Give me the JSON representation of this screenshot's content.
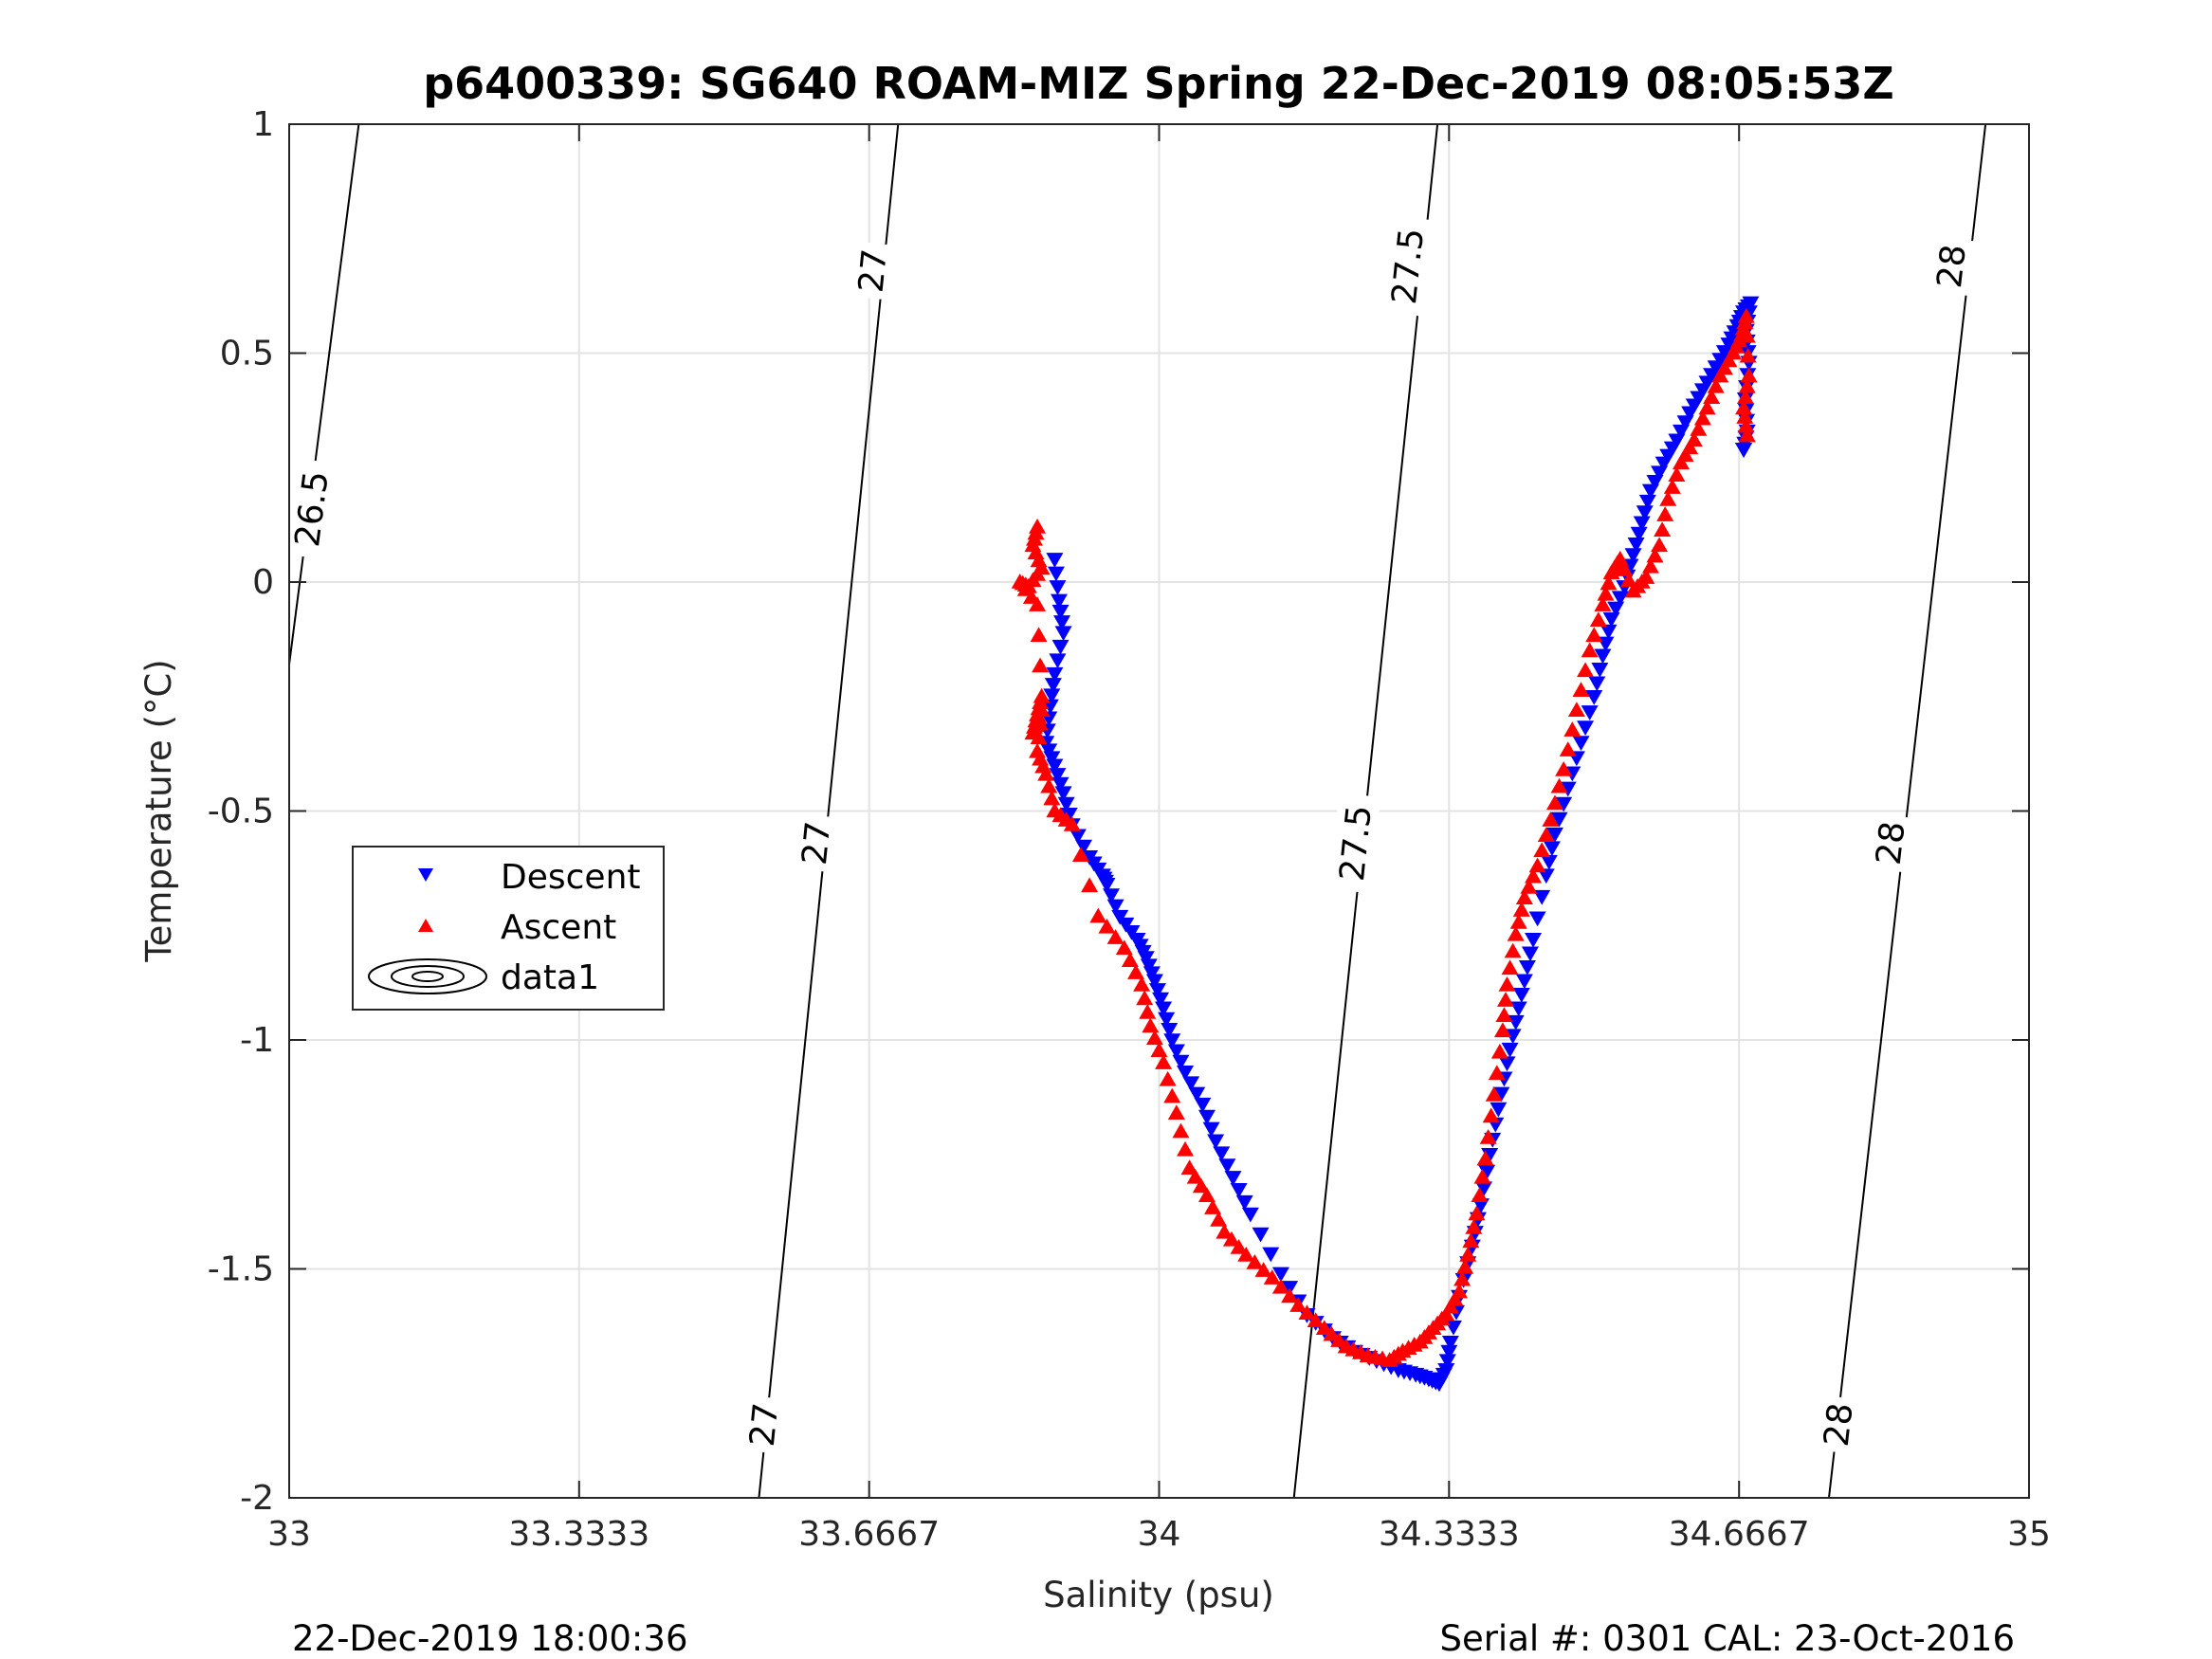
{
  "chart_data": {
    "type": "scatter",
    "title": "p6400339: SG640 ROAM-MIZ Spring 22-Dec-2019 08:05:53Z",
    "xlabel": "Salinity (psu)",
    "ylabel": "Temperature (°C)",
    "xlim": [
      33,
      35
    ],
    "ylim": [
      -2,
      1
    ],
    "grid": true,
    "x_ticks": [
      33,
      33.3333,
      33.6667,
      34,
      34.3333,
      34.6667,
      35
    ],
    "x_tick_labels": [
      "33",
      "33.3333",
      "33.6667",
      "34",
      "34.3333",
      "34.6667",
      "35"
    ],
    "y_ticks": [
      -2,
      -1.5,
      -1,
      -0.5,
      0,
      0.5,
      1
    ],
    "y_tick_labels": [
      "-2",
      "-1.5",
      "-1",
      "-0.5",
      "0",
      "0.5",
      "1"
    ],
    "legend": {
      "placement": "middle-left",
      "entries": [
        {
          "name": "Descent",
          "marker": "triangle-down",
          "color": "#0000ff"
        },
        {
          "name": "Ascent",
          "marker": "triangle-up",
          "color": "#ff0000"
        },
        {
          "name": "data1",
          "marker": "contour",
          "color": "#000000"
        }
      ]
    },
    "density_contours": [
      {
        "label": "26.5",
        "points": [
          [
            33.0,
            -0.18
          ],
          [
            33.08,
            1.0
          ]
        ],
        "label_at": [
          33.025,
          0.16
        ]
      },
      {
        "label": "27",
        "points": [
          [
            33.54,
            -2.0
          ],
          [
            33.7,
            1.0
          ]
        ],
        "label_at_list": [
          [
            33.545,
            -1.84
          ],
          [
            33.605,
            -0.57
          ],
          [
            33.67,
            0.68
          ]
        ]
      },
      {
        "label": "27.5",
        "points": [
          [
            34.155,
            -2.0
          ],
          [
            34.32,
            1.0
          ]
        ],
        "label_at_list": [
          [
            34.225,
            -0.57
          ],
          [
            34.285,
            0.69
          ]
        ]
      },
      {
        "label": "28",
        "points": [
          [
            34.77,
            -2.0
          ],
          [
            34.95,
            1.0
          ]
        ],
        "label_at_list": [
          [
            34.78,
            -1.84
          ],
          [
            34.84,
            -0.57
          ],
          [
            34.91,
            0.69
          ]
        ]
      }
    ],
    "series": [
      {
        "name": "Descent",
        "color": "#0000ff",
        "marker": "triangle-down",
        "points": [
          [
            33.88,
            0.05
          ],
          [
            33.885,
            -0.04
          ],
          [
            33.89,
            -0.11
          ],
          [
            33.88,
            -0.2
          ],
          [
            33.875,
            -0.27
          ],
          [
            33.87,
            -0.35
          ],
          [
            33.88,
            -0.4
          ],
          [
            33.89,
            -0.46
          ],
          [
            33.9,
            -0.53
          ],
          [
            33.92,
            -0.6
          ],
          [
            33.935,
            -0.64
          ],
          [
            33.94,
            -0.66
          ],
          [
            33.955,
            -0.73
          ],
          [
            33.975,
            -0.78
          ],
          [
            33.985,
            -0.82
          ],
          [
            33.995,
            -0.87
          ],
          [
            34.005,
            -0.93
          ],
          [
            34.015,
            -1.0
          ],
          [
            34.03,
            -1.07
          ],
          [
            34.05,
            -1.14
          ],
          [
            34.065,
            -1.22
          ],
          [
            34.085,
            -1.3
          ],
          [
            34.105,
            -1.38
          ],
          [
            34.14,
            -1.51
          ],
          [
            34.17,
            -1.6
          ],
          [
            34.2,
            -1.65
          ],
          [
            34.225,
            -1.68
          ],
          [
            34.25,
            -1.7
          ],
          [
            34.275,
            -1.72
          ],
          [
            34.295,
            -1.73
          ],
          [
            34.31,
            -1.74
          ],
          [
            34.322,
            -1.75
          ],
          [
            34.33,
            -1.72
          ],
          [
            34.335,
            -1.66
          ],
          [
            34.345,
            -1.56
          ],
          [
            34.36,
            -1.45
          ],
          [
            34.37,
            -1.36
          ],
          [
            34.38,
            -1.25
          ],
          [
            34.39,
            -1.15
          ],
          [
            34.4,
            -1.05
          ],
          [
            34.41,
            -0.96
          ],
          [
            34.42,
            -0.87
          ],
          [
            34.43,
            -0.78
          ],
          [
            34.445,
            -0.64
          ],
          [
            34.455,
            -0.55
          ],
          [
            34.47,
            -0.45
          ],
          [
            34.485,
            -0.35
          ],
          [
            34.5,
            -0.25
          ],
          [
            34.51,
            -0.16
          ],
          [
            34.52,
            -0.08
          ],
          [
            34.535,
            -0.01
          ],
          [
            34.545,
            0.06
          ],
          [
            34.555,
            0.13
          ],
          [
            34.565,
            0.2
          ],
          [
            34.58,
            0.26
          ],
          [
            34.595,
            0.31
          ],
          [
            34.61,
            0.37
          ],
          [
            34.625,
            0.42
          ],
          [
            34.64,
            0.47
          ],
          [
            34.655,
            0.52
          ],
          [
            34.665,
            0.56
          ],
          [
            34.672,
            0.59
          ],
          [
            34.68,
            0.61
          ],
          [
            34.675,
            0.55
          ],
          [
            34.678,
            0.48
          ],
          [
            34.674,
            0.4
          ],
          [
            34.676,
            0.33
          ],
          [
            34.672,
            0.29
          ]
        ]
      },
      {
        "name": "Ascent",
        "color": "#ff0000",
        "marker": "triangle-up",
        "points": [
          [
            33.86,
            0.12
          ],
          [
            33.855,
            0.08
          ],
          [
            33.865,
            0.03
          ],
          [
            33.85,
            -0.01
          ],
          [
            33.84,
            0.0
          ],
          [
            33.86,
            -0.05
          ],
          [
            33.865,
            -0.25
          ],
          [
            33.86,
            -0.29
          ],
          [
            33.855,
            -0.33
          ],
          [
            33.865,
            -0.28
          ],
          [
            33.86,
            -0.37
          ],
          [
            33.87,
            -0.42
          ],
          [
            33.88,
            -0.5
          ],
          [
            33.9,
            -0.53
          ],
          [
            33.93,
            -0.73
          ],
          [
            33.96,
            -0.8
          ],
          [
            33.98,
            -0.88
          ],
          [
            33.99,
            -0.97
          ],
          [
            34.005,
            -1.05
          ],
          [
            34.02,
            -1.16
          ],
          [
            34.035,
            -1.28
          ],
          [
            34.055,
            -1.34
          ],
          [
            34.075,
            -1.42
          ],
          [
            34.1,
            -1.47
          ],
          [
            34.13,
            -1.52
          ],
          [
            34.16,
            -1.58
          ],
          [
            34.19,
            -1.63
          ],
          [
            34.215,
            -1.67
          ],
          [
            34.24,
            -1.69
          ],
          [
            34.265,
            -1.7
          ],
          [
            34.28,
            -1.68
          ],
          [
            34.3,
            -1.66
          ],
          [
            34.315,
            -1.63
          ],
          [
            34.33,
            -1.6
          ],
          [
            34.345,
            -1.55
          ],
          [
            34.355,
            -1.47
          ],
          [
            34.365,
            -1.38
          ],
          [
            34.375,
            -1.26
          ],
          [
            34.385,
            -1.12
          ],
          [
            34.395,
            -0.98
          ],
          [
            34.4,
            -0.88
          ],
          [
            34.41,
            -0.77
          ],
          [
            34.42,
            -0.69
          ],
          [
            34.435,
            -0.62
          ],
          [
            34.45,
            -0.52
          ],
          [
            34.465,
            -0.41
          ],
          [
            34.48,
            -0.28
          ],
          [
            34.495,
            -0.15
          ],
          [
            34.51,
            -0.05
          ],
          [
            34.52,
            0.02
          ],
          [
            34.53,
            0.05
          ],
          [
            34.545,
            -0.02
          ],
          [
            34.56,
            0.01
          ],
          [
            34.575,
            0.08
          ],
          [
            34.585,
            0.18
          ],
          [
            34.6,
            0.26
          ],
          [
            34.615,
            0.31
          ],
          [
            34.63,
            0.38
          ],
          [
            34.645,
            0.45
          ],
          [
            34.66,
            0.5
          ],
          [
            34.67,
            0.54
          ],
          [
            34.675,
            0.58
          ],
          [
            34.678,
            0.45
          ],
          [
            34.672,
            0.38
          ],
          [
            34.676,
            0.32
          ]
        ]
      }
    ],
    "footer_left": "22-Dec-2019 18:00:36",
    "footer_right": "Serial #: 0301  CAL: 23-Oct-2016"
  }
}
